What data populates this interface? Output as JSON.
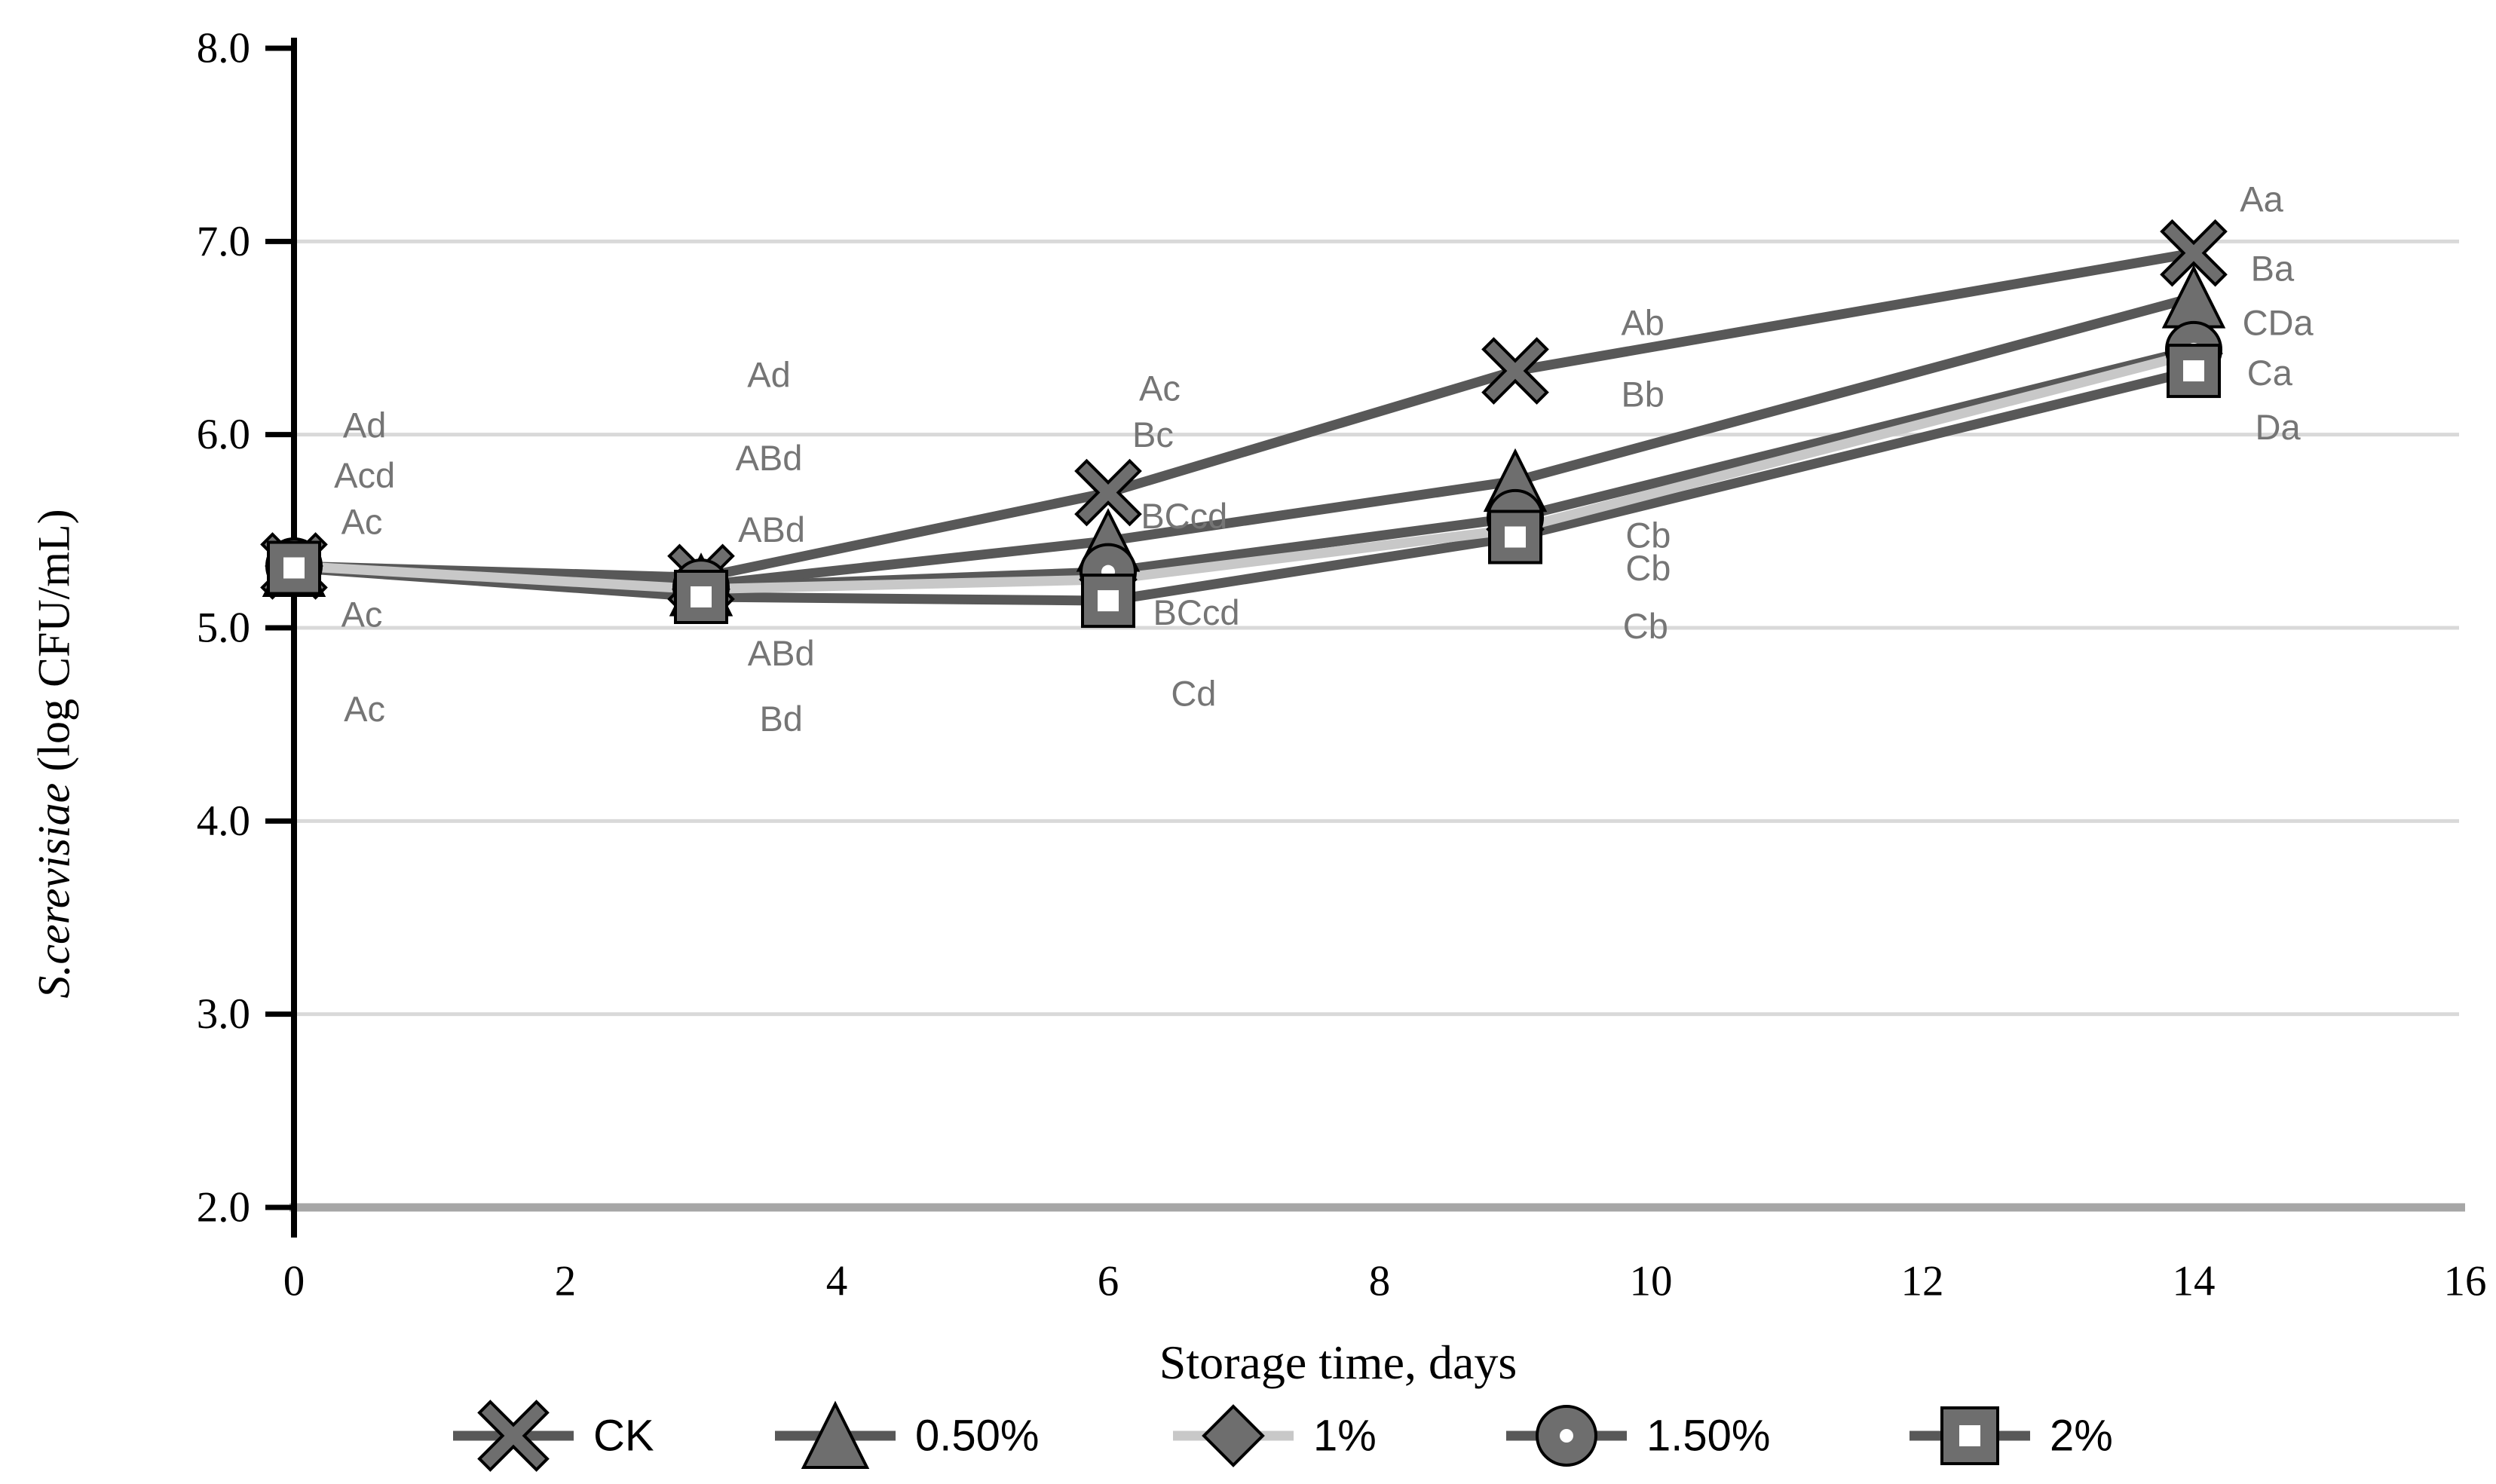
{
  "chart_data": {
    "type": "line",
    "title": "",
    "xlabel": "Storage time, days",
    "ylabel_italic": "S.cerevisiae",
    "ylabel_rest": " (log CFU/mL)",
    "xlim": [
      0,
      16
    ],
    "ylim": [
      2.0,
      8.0
    ],
    "grid": "horizontal",
    "legend_position": "bottom",
    "x": [
      0,
      3,
      6,
      9,
      14
    ],
    "x_ticks": [
      {
        "v": 0,
        "label": "0"
      },
      {
        "v": 2,
        "label": "2"
      },
      {
        "v": 4,
        "label": "4"
      },
      {
        "v": 6,
        "label": "6"
      },
      {
        "v": 8,
        "label": "8"
      },
      {
        "v": 10,
        "label": "10"
      },
      {
        "v": 12,
        "label": "12"
      },
      {
        "v": 14,
        "label": "14"
      },
      {
        "v": 16,
        "label": "16"
      }
    ],
    "y_ticks": [
      {
        "v": 8,
        "label": "8.0"
      },
      {
        "v": 7,
        "label": "7.0"
      },
      {
        "v": 6,
        "label": "6.0"
      },
      {
        "v": 5,
        "label": "5.0"
      },
      {
        "v": 4,
        "label": "4.0"
      },
      {
        "v": 3,
        "label": "3.0"
      },
      {
        "v": 2,
        "label": "2.0"
      }
    ],
    "gridline_values": [
      7,
      6,
      5,
      4,
      3
    ],
    "colors": {
      "series_dark": "#585858",
      "series_light_line": "#c8c8c8",
      "marker_fill": "#6e6e6e",
      "marker_edge": "#000000",
      "gridline": "#d9d9d9",
      "x_axis": "#a6a6a6",
      "y_axis": "#000000",
      "annotation": "#757575"
    },
    "series": [
      {
        "name": "CK",
        "marker": "x",
        "line_color": "#585858",
        "values": [
          5.32,
          5.26,
          5.7,
          6.33,
          6.94
        ]
      },
      {
        "name": "0.50%",
        "marker": "triangle",
        "line_color": "#585858",
        "values": [
          5.32,
          5.22,
          5.45,
          5.76,
          6.71
        ]
      },
      {
        "name": "1%",
        "marker": "diamond",
        "line_color": "#c8c8c8",
        "values": [
          5.32,
          5.2,
          5.25,
          5.51,
          6.42
        ]
      },
      {
        "name": "1.50%",
        "marker": "circle",
        "line_color": "#585858",
        "values": [
          5.32,
          5.21,
          5.29,
          5.57,
          6.44
        ]
      },
      {
        "name": "2%",
        "marker": "square",
        "line_color": "#585858",
        "values": [
          5.31,
          5.16,
          5.14,
          5.47,
          6.33
        ]
      }
    ],
    "annotations": [
      {
        "day": 0.52,
        "value": 6.05,
        "text": "Ad"
      },
      {
        "day": 0.52,
        "value": 5.79,
        "text": "Acd"
      },
      {
        "day": 0.5,
        "value": 5.55,
        "text": "Ac"
      },
      {
        "day": 0.5,
        "value": 5.07,
        "text": "Ac"
      },
      {
        "day": 0.52,
        "value": 4.58,
        "text": "Ac"
      },
      {
        "day": 3.5,
        "value": 6.31,
        "text": "Ad"
      },
      {
        "day": 3.5,
        "value": 5.88,
        "text": "ABd"
      },
      {
        "day": 3.52,
        "value": 5.51,
        "text": "ABd"
      },
      {
        "day": 3.59,
        "value": 4.87,
        "text": "ABd"
      },
      {
        "day": 3.59,
        "value": 4.53,
        "text": "Bd"
      },
      {
        "day": 6.38,
        "value": 6.24,
        "text": "Ac"
      },
      {
        "day": 6.33,
        "value": 6.0,
        "text": "Bc"
      },
      {
        "day": 6.56,
        "value": 5.58,
        "text": "BCcd"
      },
      {
        "day": 6.65,
        "value": 5.08,
        "text": "BCcd"
      },
      {
        "day": 6.63,
        "value": 4.66,
        "text": "Cd"
      },
      {
        "day": 9.94,
        "value": 6.58,
        "text": "Ab"
      },
      {
        "day": 9.94,
        "value": 6.21,
        "text": "Bb"
      },
      {
        "day": 9.98,
        "value": 5.48,
        "text": "Cb"
      },
      {
        "day": 9.98,
        "value": 5.31,
        "text": "Cb"
      },
      {
        "day": 9.96,
        "value": 5.01,
        "text": "Cb"
      },
      {
        "day": 14.5,
        "value": 7.22,
        "text": "Aa"
      },
      {
        "day": 14.58,
        "value": 6.86,
        "text": "Ba"
      },
      {
        "day": 14.62,
        "value": 6.58,
        "text": "CDa"
      },
      {
        "day": 14.56,
        "value": 6.32,
        "text": "Ca"
      },
      {
        "day": 14.62,
        "value": 6.04,
        "text": "Da"
      }
    ],
    "legend_items": [
      "CK",
      "0.50%",
      "1%",
      "1.50%",
      "2%"
    ]
  }
}
